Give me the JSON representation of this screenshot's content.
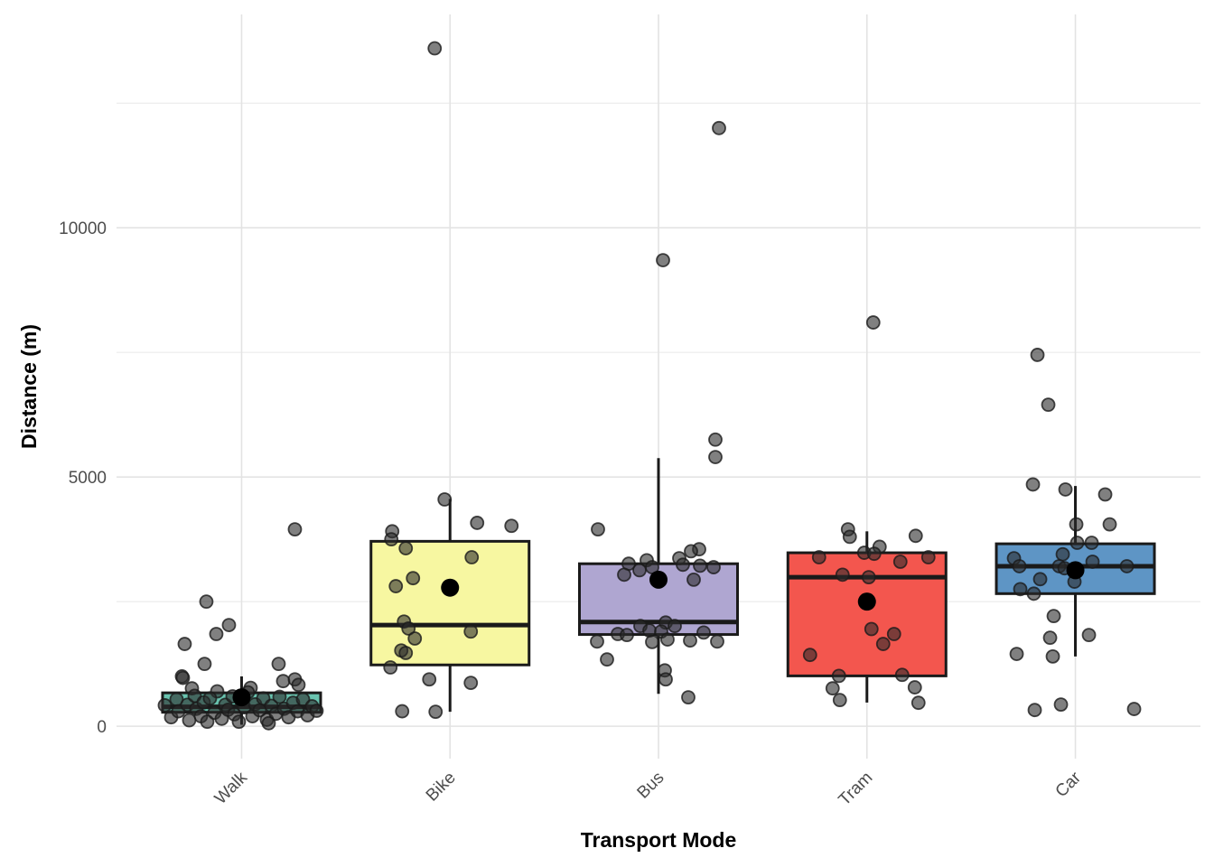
{
  "page": {
    "background": "#FFFFFF"
  },
  "chart_data": {
    "type": "boxplot",
    "title": "",
    "xlabel": "Transport Mode",
    "ylabel": "Distance (m)",
    "categories": [
      "Walk",
      "Bike",
      "Bus",
      "Tram",
      "Car"
    ],
    "legend": "none",
    "grid": {
      "show": true,
      "major_color": "#E3E3E3",
      "minor_color": "#ECECEC"
    },
    "axis_text_color": "#4D4D4D",
    "box_stroke": "#1A1A1A",
    "point_style": {
      "fill": "#2B2B2B",
      "fill_opacity": 0.6,
      "stroke": "#1A1A1A",
      "stroke_opacity": 0.8,
      "radius": 7
    },
    "mean_style": {
      "fill": "#000000",
      "radius": 10
    },
    "y_axis": {
      "ticks": [
        0,
        5000,
        10000
      ],
      "minor_ticks": [
        2500,
        7500,
        12500
      ],
      "ylim": [
        -650,
        14280
      ]
    },
    "series": [
      {
        "name": "Walk",
        "fill": "#69C3AF",
        "box": {
          "whisker_low": 30,
          "q1": 280,
          "median": 390,
          "q3": 670,
          "whisker_high": 1000
        },
        "mean": 580,
        "points": [
          [
            59,
            3950
          ],
          [
            -39,
            2500
          ],
          [
            -14,
            2030
          ],
          [
            -28,
            1850
          ],
          [
            -63,
            1650
          ],
          [
            -41,
            1250
          ],
          [
            41,
            1250
          ],
          [
            -66,
            1000
          ],
          [
            -65,
            970
          ],
          [
            46,
            905
          ],
          [
            59,
            940
          ],
          [
            63,
            830
          ],
          [
            -55,
            760
          ],
          [
            10,
            770
          ],
          [
            7,
            680
          ],
          [
            -27,
            700
          ],
          [
            -85,
            420
          ],
          [
            -78,
            180
          ],
          [
            -72,
            540
          ],
          [
            -70,
            300
          ],
          [
            -60,
            430
          ],
          [
            -58,
            120
          ],
          [
            -52,
            610
          ],
          [
            -50,
            350
          ],
          [
            -45,
            200
          ],
          [
            -42,
            480
          ],
          [
            -38,
            90
          ],
          [
            -35,
            560
          ],
          [
            -30,
            270
          ],
          [
            -22,
            150
          ],
          [
            -18,
            430
          ],
          [
            -15,
            330
          ],
          [
            -10,
            600
          ],
          [
            -8,
            240
          ],
          [
            -3,
            90
          ],
          [
            0,
            500
          ],
          [
            3,
            380
          ],
          [
            12,
            200
          ],
          [
            15,
            440
          ],
          [
            20,
            320
          ],
          [
            24,
            560
          ],
          [
            28,
            130
          ],
          [
            33,
            410
          ],
          [
            38,
            250
          ],
          [
            42,
            590
          ],
          [
            47,
            350
          ],
          [
            52,
            180
          ],
          [
            57,
            470
          ],
          [
            62,
            300
          ],
          [
            68,
            540
          ],
          [
            73,
            220
          ],
          [
            78,
            400
          ],
          [
            83,
            310
          ],
          [
            30,
            60
          ]
        ]
      },
      {
        "name": "Bike",
        "fill": "#F7F7A1",
        "box": {
          "whisker_low": 290,
          "q1": 1230,
          "median": 2030,
          "q3": 3710,
          "whisker_high": 4560
        },
        "mean": 2780,
        "points": [
          [
            -17,
            13600
          ],
          [
            -6,
            4550
          ],
          [
            30,
            4080
          ],
          [
            68,
            4020
          ],
          [
            -64,
            3910
          ],
          [
            -65,
            3750
          ],
          [
            -49,
            3570
          ],
          [
            24,
            3390
          ],
          [
            -41,
            2970
          ],
          [
            -60,
            2810
          ],
          [
            -51,
            2100
          ],
          [
            -46,
            1960
          ],
          [
            23,
            1900
          ],
          [
            -39,
            1760
          ],
          [
            -54,
            1520
          ],
          [
            -49,
            1470
          ],
          [
            -66,
            1180
          ],
          [
            -23,
            940
          ],
          [
            23,
            870
          ],
          [
            -53,
            300
          ],
          [
            -16,
            290
          ]
        ]
      },
      {
        "name": "Bus",
        "fill": "#AFA6D1",
        "box": {
          "whisker_low": 650,
          "q1": 1840,
          "median": 2090,
          "q3": 3260,
          "whisker_high": 5380
        },
        "mean": 2940,
        "points": [
          [
            67,
            12000
          ],
          [
            5,
            9350
          ],
          [
            63,
            5750
          ],
          [
            63,
            5400
          ],
          [
            -67,
            3950
          ],
          [
            45,
            3550
          ],
          [
            36,
            3510
          ],
          [
            23,
            3370
          ],
          [
            -13,
            3330
          ],
          [
            -33,
            3260
          ],
          [
            27,
            3240
          ],
          [
            46,
            3220
          ],
          [
            -7,
            3190
          ],
          [
            61,
            3190
          ],
          [
            -21,
            3130
          ],
          [
            -38,
            3040
          ],
          [
            39,
            2940
          ],
          [
            8,
            2080
          ],
          [
            18,
            2010
          ],
          [
            -20,
            2010
          ],
          [
            -10,
            1920
          ],
          [
            3,
            1900
          ],
          [
            50,
            1880
          ],
          [
            -45,
            1850
          ],
          [
            -35,
            1830
          ],
          [
            10,
            1740
          ],
          [
            35,
            1720
          ],
          [
            -68,
            1700
          ],
          [
            -7,
            1690
          ],
          [
            65,
            1700
          ],
          [
            -57,
            1340
          ],
          [
            7,
            1120
          ],
          [
            8,
            940
          ],
          [
            33,
            580
          ]
        ]
      },
      {
        "name": "Tram",
        "fill": "#F3564E",
        "box": {
          "whisker_low": 475,
          "q1": 1010,
          "median": 2990,
          "q3": 3480,
          "whisker_high": 3910
        },
        "mean": 2500,
        "points": [
          [
            7,
            8100
          ],
          [
            -21,
            3950
          ],
          [
            -19,
            3800
          ],
          [
            54,
            3820
          ],
          [
            14,
            3600
          ],
          [
            -3,
            3480
          ],
          [
            8,
            3460
          ],
          [
            -53,
            3390
          ],
          [
            68,
            3390
          ],
          [
            37,
            3300
          ],
          [
            -27,
            3040
          ],
          [
            2,
            2990
          ],
          [
            5,
            1950
          ],
          [
            30,
            1850
          ],
          [
            18,
            1650
          ],
          [
            -63,
            1430
          ],
          [
            -31,
            1010
          ],
          [
            39,
            1030
          ],
          [
            -38,
            760
          ],
          [
            53,
            780
          ],
          [
            -30,
            525
          ],
          [
            57,
            470
          ]
        ]
      },
      {
        "name": "Car",
        "fill": "#5E95C5",
        "box": {
          "whisker_low": 1400,
          "q1": 2660,
          "median": 3210,
          "q3": 3660,
          "whisker_high": 4820
        },
        "mean": 3130,
        "points": [
          [
            -42,
            7450
          ],
          [
            -30,
            6450
          ],
          [
            -47,
            4850
          ],
          [
            -11,
            4750
          ],
          [
            33,
            4650
          ],
          [
            1,
            4050
          ],
          [
            38,
            4050
          ],
          [
            2,
            3680
          ],
          [
            18,
            3680
          ],
          [
            -14,
            3450
          ],
          [
            -68,
            3370
          ],
          [
            19,
            3300
          ],
          [
            -62,
            3210
          ],
          [
            -18,
            3210
          ],
          [
            57,
            3210
          ],
          [
            -12,
            3170
          ],
          [
            -39,
            2950
          ],
          [
            -1,
            2900
          ],
          [
            -61,
            2750
          ],
          [
            -46,
            2660
          ],
          [
            -24,
            2210
          ],
          [
            15,
            1830
          ],
          [
            -28,
            1775
          ],
          [
            -65,
            1450
          ],
          [
            -25,
            1400
          ],
          [
            -16,
            435
          ],
          [
            65,
            345
          ],
          [
            -45,
            325
          ]
        ]
      }
    ]
  }
}
